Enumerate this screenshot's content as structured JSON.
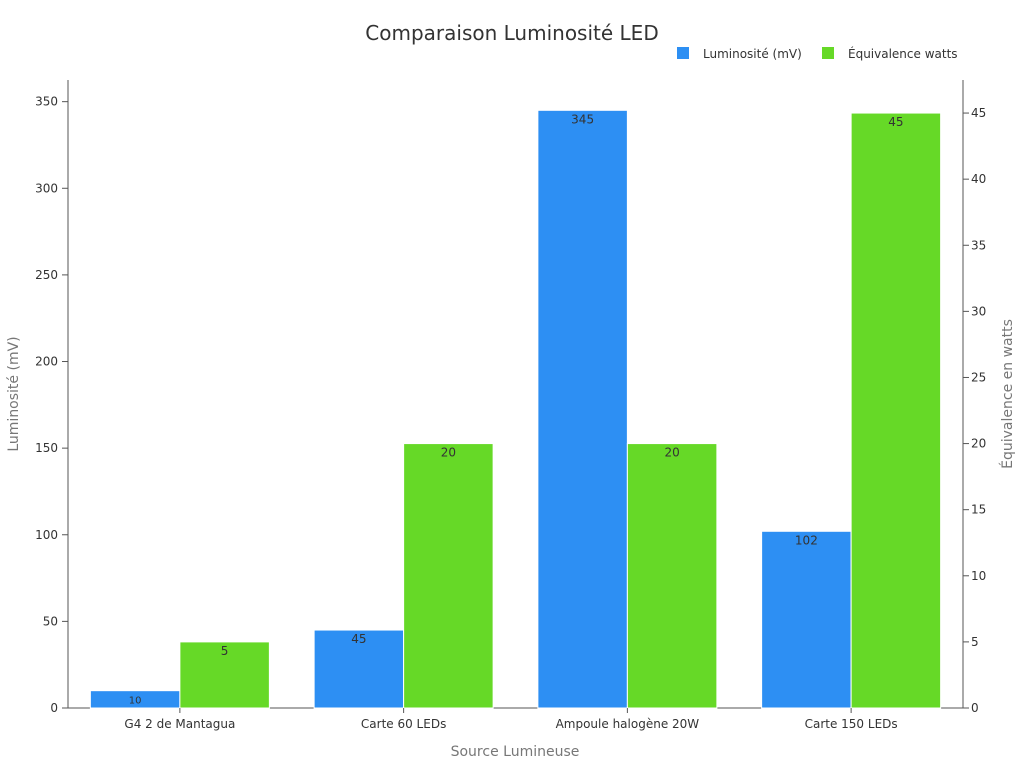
{
  "chart_data": {
    "type": "bar",
    "title": "Comparaison Luminosité LED",
    "xlabel": "Source Lumineuse",
    "ylabel_left": "Luminosité (mV)",
    "ylabel_right": "Équivalence en watts",
    "categories": [
      "G4 2 de Mantagua",
      "Carte 60 LEDs",
      "Ampoule halogène 20W",
      "Carte 150 LEDs"
    ],
    "series": [
      {
        "name": "Luminosité (mV)",
        "axis": "left",
        "color": "#2d8ff3",
        "values": [
          10,
          45,
          345,
          102
        ],
        "labels": [
          "10",
          "45",
          "345",
          "102"
        ]
      },
      {
        "name": "Équivalence watts",
        "axis": "right",
        "color": "#66d927",
        "values": [
          5,
          20,
          20,
          45
        ],
        "labels": [
          "5",
          "20",
          "20",
          "45"
        ]
      }
    ],
    "ylim_left": [
      0,
      362.5
    ],
    "ylim_right": [
      0,
      47.5
    ],
    "yticks_left": [
      0,
      50,
      100,
      150,
      200,
      250,
      300,
      350
    ],
    "yticks_right": [
      0,
      5,
      10,
      15,
      20,
      25,
      30,
      35,
      40,
      45
    ],
    "legend_position": "top-right",
    "grid": false
  }
}
